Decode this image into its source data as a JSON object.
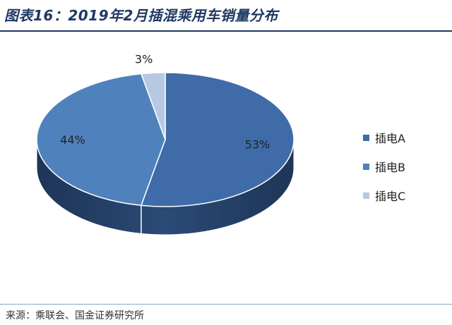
{
  "header": {
    "title": "图表16：2019年2月插混乘用车销量分布"
  },
  "footer": {
    "source": "来源：乘联会、国金证券研究所"
  },
  "chart_data": {
    "type": "pie",
    "title": "",
    "categories": [
      "插电A",
      "插电B",
      "插电C"
    ],
    "values": [
      53,
      44,
      3
    ],
    "labels": [
      "53%",
      "44%",
      "3%"
    ],
    "colors": [
      "#3f6ba8",
      "#4f81bd",
      "#b7c9e2"
    ],
    "legend_position": "right"
  }
}
